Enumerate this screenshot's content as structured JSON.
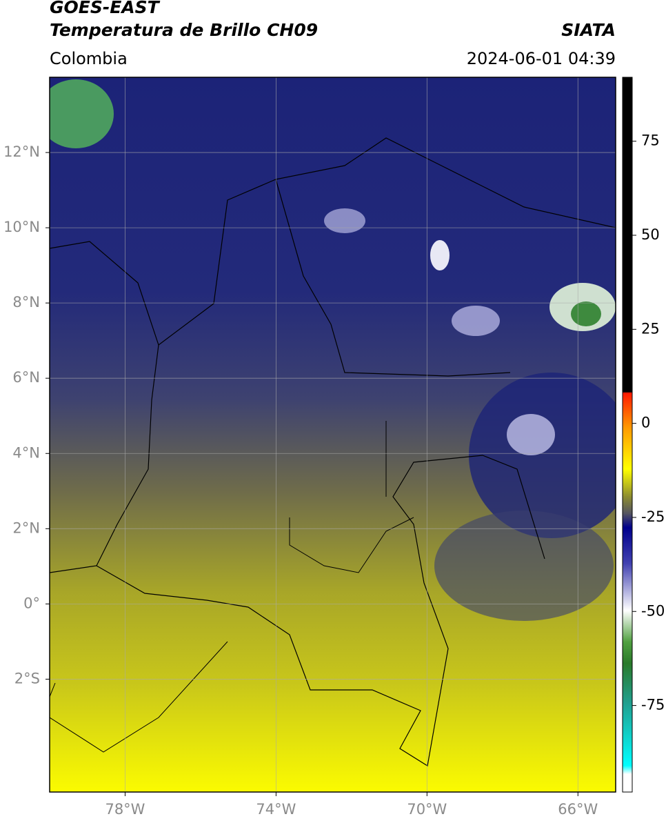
{
  "header": {
    "title": "GOES-EAST",
    "subtitle": "Temperatura de Brillo CH09",
    "region": "Colombia",
    "source": "SIATA",
    "datetime": "2024-06-01 04:39"
  },
  "map": {
    "xlim": [
      -80,
      -65
    ],
    "ylim": [
      -5,
      14
    ],
    "xticks": [
      {
        "value": -78,
        "label": "78°W"
      },
      {
        "value": -74,
        "label": "74°W"
      },
      {
        "value": -70,
        "label": "70°W"
      },
      {
        "value": -66,
        "label": "66°W"
      }
    ],
    "yticks": [
      {
        "value": 12,
        "label": "12°N"
      },
      {
        "value": 10,
        "label": "10°N"
      },
      {
        "value": 8,
        "label": "8°N"
      },
      {
        "value": 6,
        "label": "6°N"
      },
      {
        "value": 4,
        "label": "4°N"
      },
      {
        "value": 2,
        "label": "2°N"
      },
      {
        "value": 0,
        "label": "0°"
      },
      {
        "value": -2,
        "label": "2°S"
      }
    ],
    "grid": true
  },
  "colorbar": {
    "lim": [
      -98,
      92
    ],
    "ticks": [
      75,
      50,
      25,
      0,
      -25,
      -50,
      -75
    ]
  }
}
